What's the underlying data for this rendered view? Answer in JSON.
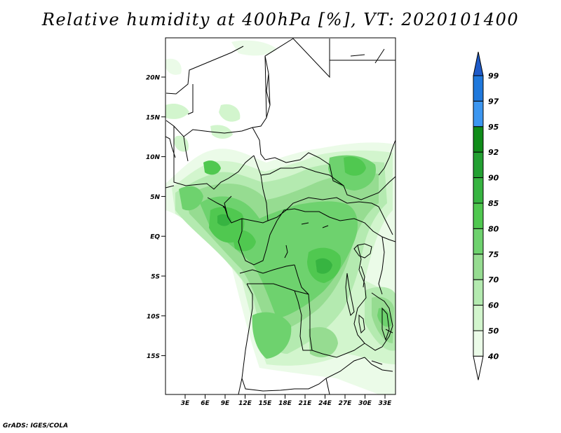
{
  "title": "Relative humidity at 400hPa [%], VT: 2020101400",
  "credit": "GrADS: IGES/COLA",
  "map": {
    "region": "Central Africa",
    "lon_range": [
      0,
      35
    ],
    "lat_range": [
      -20,
      25
    ],
    "lat_ticks": [
      "20N",
      "15N",
      "10N",
      "5N",
      "EQ",
      "5S",
      "10S",
      "15S"
    ],
    "lon_ticks": [
      "3E",
      "6E",
      "9E",
      "12E",
      "15E",
      "18E",
      "21E",
      "24E",
      "27E",
      "30E",
      "33E"
    ]
  },
  "colorbar": {
    "labels": [
      "99",
      "97",
      "95",
      "92",
      "90",
      "85",
      "80",
      "75",
      "70",
      "60",
      "50",
      "40"
    ],
    "colors": [
      "#1e5ac8",
      "#1f78dc",
      "#3c96f0",
      "#0f8c19",
      "#23a032",
      "#37b441",
      "#50c850",
      "#6ed26e",
      "#96dc91",
      "#b4eab0",
      "#d2f5cd",
      "#ebfbe8"
    ]
  },
  "colors": {
    "land_line": "#000000",
    "background": "#ffffff"
  }
}
